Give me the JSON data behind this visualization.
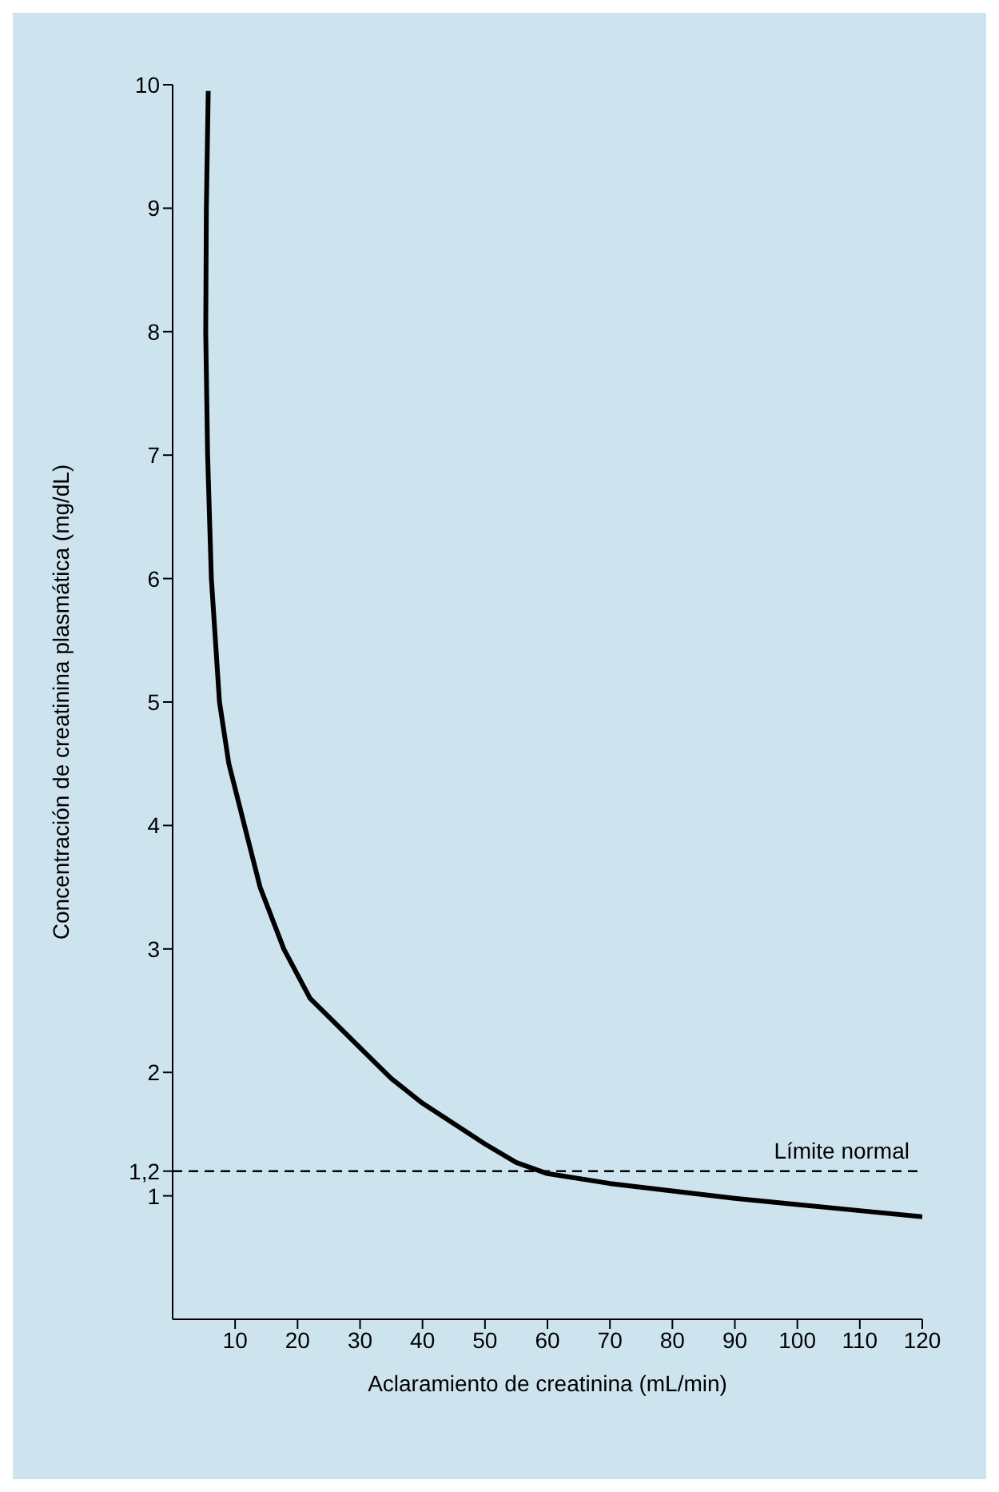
{
  "chart_data": {
    "type": "line",
    "xlabel": "Aclaramiento de creatinina (mL/min)",
    "ylabel": "Concentración de creatinina plasmática (mg/dL)",
    "series": [
      {
        "color": "#000000",
        "x": [
          5.7,
          5.4,
          5.3,
          5.6,
          6.2,
          7.5,
          9,
          11.5,
          14,
          17.8,
          22,
          30,
          35,
          40,
          50,
          55,
          60,
          70,
          80,
          90,
          100,
          110,
          120
        ],
        "values": [
          9.95,
          9,
          8,
          7,
          6,
          5,
          4.5,
          4,
          3.5,
          3,
          2.6,
          2.2,
          1.95,
          1.75,
          1.42,
          1.27,
          1.18,
          1.1,
          1.04,
          0.98,
          0.93,
          0.88,
          0.83
        ]
      }
    ],
    "xlim": [
      0,
      120
    ],
    "xticks": [
      10,
      20,
      30,
      40,
      50,
      60,
      70,
      80,
      90,
      100,
      110,
      120
    ],
    "ylim": [
      0,
      10
    ],
    "yticks": [
      1,
      {
        "value": 1.2,
        "label": "1,2"
      },
      2,
      3,
      4,
      5,
      6,
      7,
      8,
      9,
      10
    ],
    "ref_lines": [
      {
        "axis": "y",
        "value": 1.2,
        "label": "Límite normal",
        "color": "#000000",
        "line_style": "dashed"
      }
    ],
    "grid": false,
    "legend": false,
    "marker": "none",
    "line_style": "solid"
  }
}
